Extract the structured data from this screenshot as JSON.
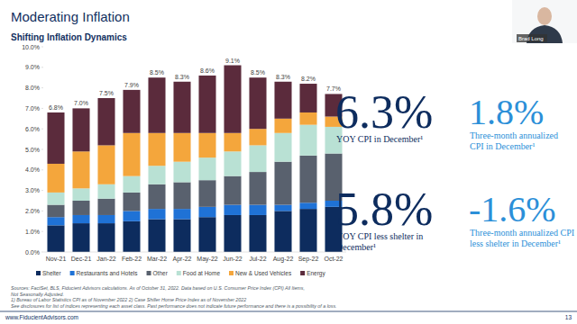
{
  "chart_data": {
    "type": "bar",
    "stacked": true,
    "title": "Shifting Inflation Dynamics",
    "categories": [
      "Nov-21",
      "Dec-21",
      "Jan-22",
      "Feb-22",
      "Mar-22",
      "Apr-22",
      "May-22",
      "Jun-22",
      "Jul-22",
      "Aug-22",
      "Sep-22",
      "Oct-22"
    ],
    "series": [
      {
        "name": "Shelter",
        "color": "#0d2c5e",
        "values": [
          1.3,
          1.4,
          1.4,
          1.5,
          1.6,
          1.6,
          1.7,
          1.8,
          1.8,
          2.0,
          2.1,
          2.2
        ]
      },
      {
        "name": "Restaurants and Hotels",
        "color": "#1f72d6",
        "values": [
          0.4,
          0.4,
          0.4,
          0.5,
          0.5,
          0.5,
          0.5,
          0.5,
          0.5,
          0.3,
          0.3,
          0.3
        ]
      },
      {
        "name": "Other",
        "color": "#59616e",
        "values": [
          0.6,
          0.7,
          0.8,
          0.9,
          1.2,
          1.3,
          1.3,
          1.4,
          1.6,
          2.1,
          2.3,
          2.3
        ]
      },
      {
        "name": "Food at Home",
        "color": "#b9e1d4",
        "values": [
          0.6,
          0.6,
          0.7,
          0.8,
          0.9,
          1.0,
          1.1,
          1.2,
          1.3,
          1.4,
          1.5,
          1.3
        ]
      },
      {
        "name": "New & Used Vehicles",
        "color": "#f4a63c",
        "values": [
          1.4,
          1.8,
          1.9,
          2.1,
          1.6,
          1.4,
          1.2,
          0.9,
          0.8,
          0.7,
          0.6,
          0.5
        ]
      },
      {
        "name": "Energy",
        "color": "#5b2b3c",
        "values": [
          2.5,
          2.1,
          2.3,
          2.1,
          2.7,
          2.5,
          2.8,
          3.3,
          2.5,
          1.8,
          1.4,
          1.1
        ]
      }
    ],
    "totals": {
      "values": [
        6.8,
        7.0,
        7.5,
        7.9,
        8.5,
        8.3,
        8.6,
        9.1,
        8.5,
        8.3,
        8.2,
        7.7
      ],
      "value_labels": [
        "6.8%",
        "7.0%",
        "7.5%",
        "7.9%",
        "8.5%",
        "8.3%",
        "8.6%",
        "9.1%",
        "8.5%",
        "8.3%",
        "8.2%",
        "7.7%"
      ]
    },
    "ylim": [
      0,
      10
    ],
    "yticks": [
      {
        "value": 0,
        "label": "0.0%"
      },
      {
        "value": 1,
        "label": "1.0%"
      },
      {
        "value": 2,
        "label": "2.0%"
      },
      {
        "value": 3,
        "label": "3.0%"
      },
      {
        "value": 4,
        "label": "4.0%"
      },
      {
        "value": 5,
        "label": "5.0%"
      },
      {
        "value": 6,
        "label": "6.0%"
      },
      {
        "value": 7,
        "label": "7.0%"
      },
      {
        "value": 8,
        "label": "8.0%"
      },
      {
        "value": 9,
        "label": "9.0%"
      },
      {
        "value": 10,
        "label": "10.0%"
      }
    ],
    "grid": false,
    "legend": "bottom",
    "data_labels": true
  },
  "slide": {
    "title": "Moderating Inflation",
    "presenter": "Brad Long",
    "stats": [
      {
        "value": 6.3,
        "value_label": "6.3%",
        "color": "#0d2c5e",
        "caption": [
          "YOY CPI in December¹"
        ]
      },
      {
        "value": 1.8,
        "value_label": "1.8%",
        "color": "#2b8fd8",
        "caption": [
          "Three-month annualized",
          "CPI in December¹"
        ]
      },
      {
        "value": 5.8,
        "value_label": "5.8%",
        "color": "#0d2c5e",
        "caption": [
          "YOY CPI less shelter in",
          "December¹"
        ]
      },
      {
        "value": -1.6,
        "value_label": "-1.6%",
        "color": "#2b8fd8",
        "caption": [
          "Three-month annualized CPI",
          "less shelter in December¹"
        ]
      }
    ],
    "footnotes": [
      "Sources: FactSet, BLS, Fiducient Advisors calculations. As of October 31, 2022. Data based on U.S. Consumer Price Index (CPI) All Items,",
      "Not Seasonally Adjusted.",
      "1) Bureau of Labor Statistics CPI as of November 2022 2) Case Shiller Home Price Index as of November 2022",
      "See disclosures for list of indices representing each asset class. Past performance does not indicate future performance and there is a possibility of a loss."
    ],
    "website": "www.FiducientAdvisors.com",
    "page": "13"
  }
}
